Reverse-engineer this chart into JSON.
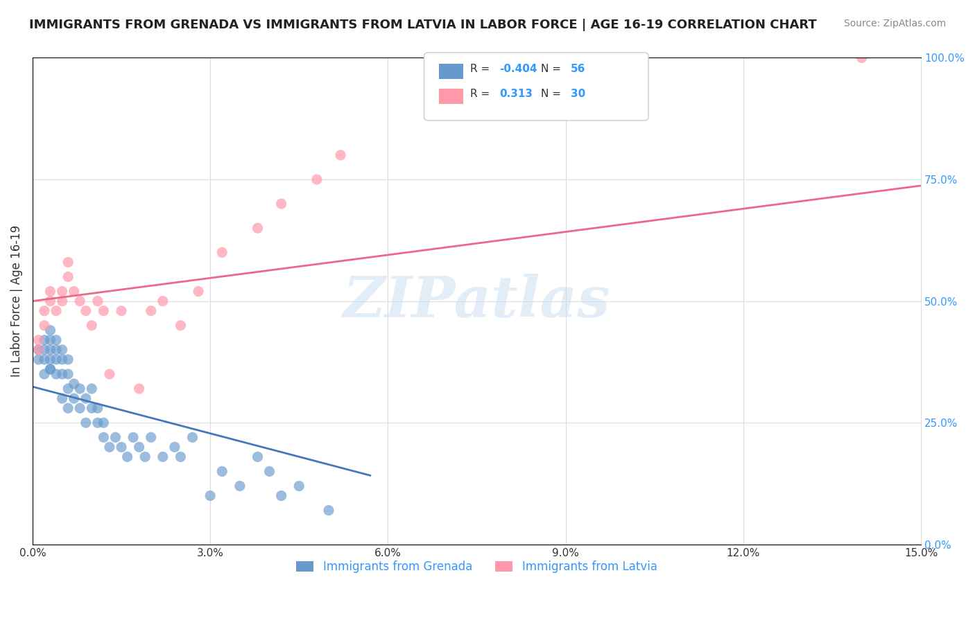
{
  "title": "IMMIGRANTS FROM GRENADA VS IMMIGRANTS FROM LATVIA IN LABOR FORCE | AGE 16-19 CORRELATION CHART",
  "source": "Source: ZipAtlas.com",
  "xlabel": "",
  "ylabel": "In Labor Force | Age 16-19",
  "xlim": [
    0.0,
    0.15
  ],
  "ylim": [
    0.0,
    1.0
  ],
  "xticks": [
    0.0,
    0.03,
    0.06,
    0.09,
    0.12,
    0.15
  ],
  "xtick_labels": [
    "0.0%",
    "3.0%",
    "6.0%",
    "9.0%",
    "12.0%",
    "15.0%"
  ],
  "yticks_right": [
    0.0,
    0.25,
    0.5,
    0.75,
    1.0
  ],
  "ytick_right_labels": [
    "0.0%",
    "25.0%",
    "50.0%",
    "75.0%",
    "100.0%"
  ],
  "grenada_color": "#6699cc",
  "latvia_color": "#ff99aa",
  "grenada_R": -0.404,
  "grenada_N": 56,
  "latvia_R": 0.313,
  "latvia_N": 30,
  "grenada_line_color": "#4477bb",
  "latvia_line_color": "#ee6688",
  "watermark": "ZIPatlas",
  "background_color": "#ffffff",
  "grid_color": "#dddddd",
  "grenada_x": [
    0.001,
    0.001,
    0.002,
    0.002,
    0.002,
    0.002,
    0.003,
    0.003,
    0.003,
    0.003,
    0.003,
    0.003,
    0.004,
    0.004,
    0.004,
    0.004,
    0.005,
    0.005,
    0.005,
    0.005,
    0.006,
    0.006,
    0.006,
    0.006,
    0.007,
    0.007,
    0.008,
    0.008,
    0.009,
    0.009,
    0.01,
    0.01,
    0.011,
    0.011,
    0.012,
    0.012,
    0.013,
    0.014,
    0.015,
    0.016,
    0.017,
    0.018,
    0.019,
    0.02,
    0.022,
    0.024,
    0.025,
    0.027,
    0.03,
    0.032,
    0.035,
    0.038,
    0.04,
    0.042,
    0.045,
    0.05
  ],
  "grenada_y": [
    0.38,
    0.4,
    0.35,
    0.4,
    0.42,
    0.38,
    0.36,
    0.4,
    0.42,
    0.44,
    0.38,
    0.36,
    0.35,
    0.38,
    0.4,
    0.42,
    0.3,
    0.35,
    0.38,
    0.4,
    0.28,
    0.32,
    0.35,
    0.38,
    0.3,
    0.33,
    0.28,
    0.32,
    0.25,
    0.3,
    0.28,
    0.32,
    0.25,
    0.28,
    0.22,
    0.25,
    0.2,
    0.22,
    0.2,
    0.18,
    0.22,
    0.2,
    0.18,
    0.22,
    0.18,
    0.2,
    0.18,
    0.22,
    0.1,
    0.15,
    0.12,
    0.18,
    0.15,
    0.1,
    0.12,
    0.07
  ],
  "latvia_x": [
    0.001,
    0.001,
    0.002,
    0.002,
    0.003,
    0.003,
    0.004,
    0.005,
    0.005,
    0.006,
    0.006,
    0.007,
    0.008,
    0.009,
    0.01,
    0.011,
    0.012,
    0.013,
    0.015,
    0.018,
    0.02,
    0.022,
    0.025,
    0.028,
    0.032,
    0.038,
    0.042,
    0.048,
    0.052,
    0.14
  ],
  "latvia_y": [
    0.4,
    0.42,
    0.45,
    0.48,
    0.5,
    0.52,
    0.48,
    0.5,
    0.52,
    0.55,
    0.58,
    0.52,
    0.5,
    0.48,
    0.45,
    0.5,
    0.48,
    0.35,
    0.48,
    0.32,
    0.48,
    0.5,
    0.45,
    0.52,
    0.6,
    0.65,
    0.7,
    0.75,
    0.8,
    1.0
  ]
}
